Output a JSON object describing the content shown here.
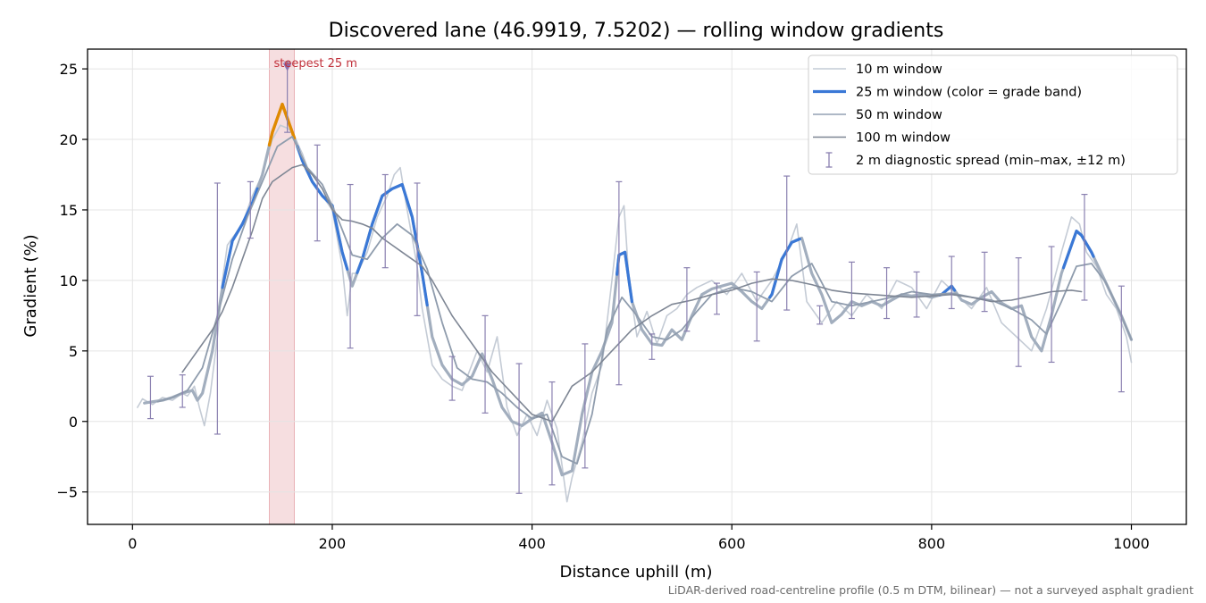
{
  "chart_data": {
    "type": "line",
    "title": "Discovered lane (46.9919, 7.5202) — rolling window gradients",
    "xlabel": "Distance uphill (m)",
    "ylabel": "Gradient (%)",
    "xlim": [
      -45,
      1055
    ],
    "ylim": [
      -7.3,
      26.4
    ],
    "x_ticks": [
      0,
      200,
      400,
      600,
      800,
      1000
    ],
    "y_ticks": [
      -5,
      0,
      5,
      10,
      15,
      20,
      25
    ],
    "y_tick_labels": [
      "−5",
      "0",
      "5",
      "10",
      "15",
      "20",
      "25"
    ],
    "grid": true,
    "legend_position": "top-right",
    "footnote": "LiDAR-derived road-centreline profile (0.5 m DTM, bilinear) — not a surveyed asphalt gradient",
    "highlight": {
      "x_range": [
        137,
        162
      ],
      "color": "#e08890",
      "label": "steepest 25 m",
      "marker_x": 155,
      "marker_y": 25.1
    },
    "grade_band_colors": {
      "normal": "#3a78d6",
      "steep": "#e08a00"
    },
    "series": [
      {
        "name": "10 m window",
        "color": "#c4cbd5",
        "x": [
          5,
          10,
          20,
          30,
          40,
          50,
          55,
          62,
          67,
          72,
          78,
          85,
          90,
          95,
          100,
          110,
          120,
          130,
          140,
          148,
          155,
          160,
          170,
          180,
          190,
          200,
          210,
          215,
          220,
          225,
          235,
          245,
          255,
          262,
          268,
          275,
          285,
          290,
          300,
          310,
          320,
          330,
          345,
          355,
          365,
          375,
          385,
          395,
          405,
          415,
          425,
          435,
          440,
          450,
          460,
          470,
          480,
          487,
          492,
          497,
          505,
          515,
          525,
          535,
          545,
          555,
          565,
          580,
          595,
          610,
          625,
          640,
          655,
          665,
          675,
          690,
          705,
          720,
          735,
          750,
          765,
          780,
          795,
          810,
          825,
          840,
          855,
          870,
          885,
          900,
          915,
          930,
          940,
          948,
          955,
          965,
          975,
          985,
          995,
          1000
        ],
        "y": [
          1.0,
          1.6,
          1.2,
          1.7,
          1.5,
          2.0,
          1.8,
          2.5,
          1.0,
          -0.3,
          2.0,
          6.0,
          10.0,
          12.5,
          13.0,
          14.0,
          16.0,
          17.5,
          20.0,
          21.0,
          20.8,
          20.5,
          19.0,
          17.0,
          16.0,
          15.0,
          11.0,
          7.5,
          10.5,
          10.5,
          12.0,
          14.5,
          16.0,
          17.5,
          18.0,
          15.0,
          11.0,
          8.0,
          4.0,
          3.0,
          2.5,
          2.2,
          5.0,
          3.5,
          6.0,
          1.0,
          -1.0,
          0.5,
          -1.0,
          1.5,
          -0.5,
          -5.7,
          -4.0,
          -1.5,
          2.0,
          4.0,
          10.0,
          14.5,
          15.3,
          10.0,
          6.0,
          7.8,
          5.5,
          7.5,
          8.0,
          9.0,
          9.5,
          10.0,
          9.0,
          10.5,
          8.5,
          10.0,
          12.0,
          14.0,
          8.5,
          7.0,
          8.5,
          7.5,
          9.0,
          8.0,
          10.0,
          9.5,
          8.0,
          10.0,
          9.0,
          8.0,
          9.5,
          7.0,
          6.0,
          5.0,
          8.0,
          12.0,
          14.5,
          14.0,
          12.0,
          11.0,
          9.0,
          8.0,
          6.0,
          4.2
        ]
      },
      {
        "name": "25 m window",
        "color": "#a2aebe",
        "width": 3.2,
        "x": [
          12,
          20,
          30,
          40,
          50,
          60,
          65,
          70,
          80,
          90,
          100,
          110,
          120,
          130,
          140,
          150,
          160,
          170,
          180,
          190,
          200,
          210,
          220,
          230,
          240,
          250,
          260,
          270,
          280,
          290,
          300,
          310,
          320,
          330,
          340,
          350,
          360,
          370,
          380,
          390,
          400,
          410,
          420,
          430,
          440,
          450,
          460,
          470,
          480,
          487,
          493,
          500,
          510,
          520,
          530,
          540,
          550,
          560,
          570,
          580,
          590,
          600,
          610,
          620,
          630,
          640,
          650,
          660,
          670,
          680,
          690,
          700,
          710,
          720,
          730,
          740,
          750,
          760,
          770,
          780,
          790,
          800,
          810,
          820,
          830,
          840,
          850,
          860,
          870,
          880,
          890,
          900,
          910,
          920,
          930,
          940,
          945,
          950,
          960,
          970,
          980,
          990,
          1000
        ],
        "y": [
          1.3,
          1.4,
          1.5,
          1.7,
          2.0,
          2.2,
          1.5,
          2.0,
          5.0,
          9.5,
          12.8,
          14.0,
          15.5,
          17.5,
          20.5,
          22.5,
          20.5,
          18.5,
          17.0,
          16.0,
          15.3,
          12.0,
          9.6,
          11.5,
          14.0,
          16.0,
          16.5,
          16.8,
          14.5,
          10.5,
          6.0,
          4.0,
          3.0,
          2.6,
          3.2,
          4.8,
          3.0,
          1.0,
          0.0,
          -0.3,
          0.2,
          0.6,
          -1.5,
          -3.8,
          -3.5,
          0.5,
          3.5,
          5.0,
          7.0,
          11.8,
          12.0,
          8.5,
          6.5,
          5.5,
          5.4,
          6.5,
          5.8,
          7.5,
          9.0,
          9.4,
          9.6,
          9.8,
          9.2,
          8.5,
          8.0,
          9.0,
          11.5,
          12.7,
          13.0,
          10.5,
          9.0,
          7.0,
          7.6,
          8.5,
          8.2,
          8.5,
          8.2,
          8.6,
          9.0,
          8.9,
          9.0,
          8.8,
          9.0,
          9.6,
          8.6,
          8.3,
          8.8,
          9.2,
          8.4,
          8.0,
          8.2,
          6.0,
          5.0,
          7.5,
          10.5,
          12.5,
          13.5,
          13.2,
          12.0,
          10.5,
          9.0,
          7.5,
          5.8
        ],
        "x_highlight_blue": [
          [
            90,
            125
          ],
          [
            165,
            215
          ],
          [
            225,
            295
          ],
          [
            485,
            500
          ],
          [
            638,
            668
          ],
          [
            808,
            823
          ],
          [
            932,
            962
          ]
        ],
        "x_highlight_orange": [
          [
            137,
            162
          ]
        ]
      },
      {
        "name": "50 m window",
        "color": "#8f9cad",
        "x": [
          25,
          40,
          55,
          70,
          85,
          100,
          115,
          130,
          145,
          160,
          175,
          190,
          205,
          220,
          235,
          250,
          265,
          280,
          295,
          310,
          325,
          340,
          355,
          370,
          385,
          400,
          415,
          430,
          445,
          460,
          475,
          490,
          505,
          520,
          535,
          550,
          565,
          580,
          600,
          620,
          640,
          660,
          680,
          700,
          720,
          740,
          760,
          780,
          800,
          820,
          840,
          860,
          880,
          900,
          915,
          930,
          945,
          960,
          975,
          990,
          1000
        ],
        "y": [
          1.4,
          1.7,
          2.2,
          3.8,
          7.5,
          11.5,
          14.5,
          17.0,
          19.5,
          20.2,
          18.0,
          16.8,
          14.5,
          11.8,
          11.5,
          13.0,
          14.0,
          13.2,
          10.8,
          7.0,
          3.8,
          3.0,
          2.8,
          2.0,
          1.0,
          0.2,
          0.5,
          -2.5,
          -3.0,
          0.5,
          6.5,
          8.8,
          7.5,
          6.0,
          5.8,
          6.5,
          7.8,
          9.0,
          9.5,
          9.2,
          8.5,
          10.3,
          11.2,
          8.5,
          8.2,
          8.5,
          8.8,
          9.2,
          9.0,
          9.1,
          8.8,
          8.6,
          8.0,
          7.2,
          6.2,
          8.5,
          11.0,
          11.2,
          9.8,
          7.5,
          5.8
        ]
      },
      {
        "name": "100 m window",
        "color": "#7e8694",
        "x": [
          50,
          60,
          70,
          80,
          90,
          100,
          110,
          120,
          130,
          140,
          150,
          160,
          170,
          180,
          190,
          200,
          210,
          220,
          230,
          240,
          250,
          260,
          270,
          280,
          290,
          300,
          320,
          340,
          360,
          380,
          400,
          420,
          440,
          460,
          480,
          500,
          520,
          540,
          560,
          580,
          600,
          620,
          640,
          660,
          680,
          700,
          720,
          740,
          760,
          780,
          800,
          820,
          840,
          860,
          880,
          900,
          920,
          940,
          950
        ],
        "y": [
          3.5,
          4.5,
          5.5,
          6.5,
          7.8,
          9.5,
          11.5,
          13.5,
          15.8,
          17.0,
          17.5,
          18.0,
          18.2,
          17.5,
          16.5,
          15.0,
          14.3,
          14.2,
          14.0,
          13.7,
          13.0,
          12.5,
          12.0,
          11.5,
          11.0,
          10.0,
          7.5,
          5.5,
          3.5,
          2.0,
          0.5,
          0.0,
          2.5,
          3.5,
          5.0,
          6.5,
          7.5,
          8.3,
          8.6,
          9.0,
          9.3,
          9.8,
          10.1,
          10.0,
          9.7,
          9.3,
          9.1,
          9.0,
          8.9,
          8.8,
          8.9,
          9.0,
          8.8,
          8.5,
          8.6,
          8.9,
          9.2,
          9.3,
          9.2
        ]
      }
    ],
    "error_bars": {
      "name": "2 m diagnostic spread (min–max, ±12 m)",
      "color": "#8a80b0",
      "points": [
        {
          "x": 18,
          "low": 0.2,
          "high": 3.2
        },
        {
          "x": 50,
          "low": 1.0,
          "high": 3.3
        },
        {
          "x": 85,
          "low": -0.9,
          "high": 16.9
        },
        {
          "x": 118,
          "low": 13.0,
          "high": 17.0
        },
        {
          "x": 155,
          "low": 20.5,
          "high": 25.5
        },
        {
          "x": 185,
          "low": 12.8,
          "high": 19.6
        },
        {
          "x": 218,
          "low": 5.2,
          "high": 16.8
        },
        {
          "x": 253,
          "low": 10.9,
          "high": 17.5
        },
        {
          "x": 285,
          "low": 7.5,
          "high": 16.9
        },
        {
          "x": 320,
          "low": 1.5,
          "high": 4.6
        },
        {
          "x": 353,
          "low": 0.6,
          "high": 7.5
        },
        {
          "x": 387,
          "low": -5.1,
          "high": 4.1
        },
        {
          "x": 420,
          "low": -4.5,
          "high": 2.8
        },
        {
          "x": 453,
          "low": -3.3,
          "high": 5.5
        },
        {
          "x": 487,
          "low": 2.6,
          "high": 17.0
        },
        {
          "x": 520,
          "low": 4.4,
          "high": 6.2
        },
        {
          "x": 555,
          "low": 6.4,
          "high": 10.9
        },
        {
          "x": 585,
          "low": 7.6,
          "high": 9.8
        },
        {
          "x": 625,
          "low": 5.7,
          "high": 10.6
        },
        {
          "x": 655,
          "low": 7.9,
          "high": 17.4
        },
        {
          "x": 688,
          "low": 6.9,
          "high": 8.2
        },
        {
          "x": 720,
          "low": 7.3,
          "high": 11.3
        },
        {
          "x": 755,
          "low": 7.3,
          "high": 10.9
        },
        {
          "x": 785,
          "low": 7.4,
          "high": 10.6
        },
        {
          "x": 820,
          "low": 8.0,
          "high": 11.7
        },
        {
          "x": 853,
          "low": 7.8,
          "high": 12.0
        },
        {
          "x": 887,
          "low": 3.9,
          "high": 11.6
        },
        {
          "x": 920,
          "low": 4.2,
          "high": 12.4
        },
        {
          "x": 953,
          "low": 8.6,
          "high": 16.1
        },
        {
          "x": 990,
          "low": 2.1,
          "high": 9.6
        }
      ]
    },
    "legend": [
      {
        "label": "10 m window",
        "kind": "line",
        "color": "#c4cbd5",
        "width": 1.6
      },
      {
        "label": "25 m window (color = grade band)",
        "kind": "line",
        "color": "#3a78d6",
        "width": 3.2
      },
      {
        "label": "50 m window",
        "kind": "line",
        "color": "#a2aebe",
        "width": 1.8
      },
      {
        "label": "100 m window",
        "kind": "line",
        "color": "#7e8694",
        "width": 1.6
      },
      {
        "label": "2 m diagnostic spread (min–max, ±12 m)",
        "kind": "errorbar",
        "color": "#8a80b0"
      }
    ]
  }
}
